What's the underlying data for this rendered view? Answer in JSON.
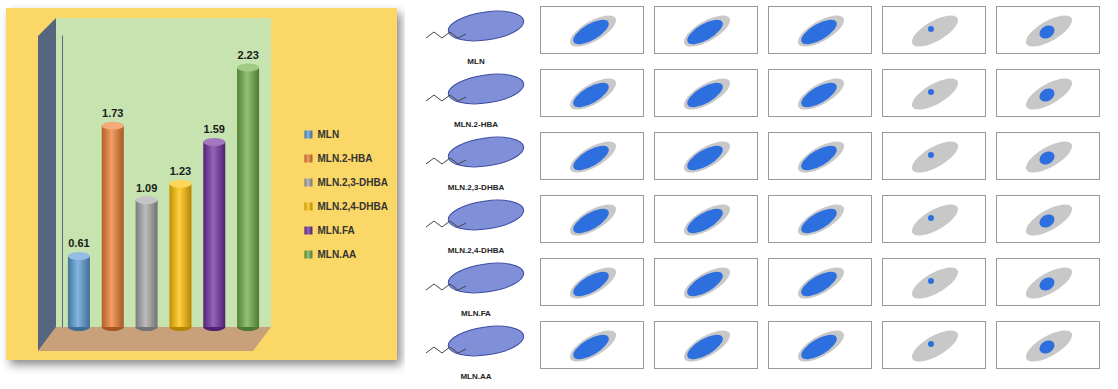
{
  "chart_data": {
    "type": "bar",
    "categories": [
      "MLN",
      "MLN.2-HBA",
      "MLN.2,3-DHBA",
      "MLN.2,4-DHBA",
      "MLN.FA",
      "MLN.AA"
    ],
    "values": [
      0.61,
      1.73,
      1.09,
      1.23,
      1.59,
      2.23
    ],
    "colors": [
      "#5b9bd5",
      "#ed7d31",
      "#a5a5a5",
      "#ffc000",
      "#7030a0",
      "#70ad47"
    ],
    "ylim": [
      0,
      2.5
    ],
    "data_labels": true,
    "tick_labels": false,
    "grid": false,
    "legend": "right"
  },
  "panel": {
    "rows": [
      "MLN",
      "MLN.2-HBA",
      "MLN.2,3-DHBA",
      "MLN.2,4-DHBA",
      "MLN.FA",
      "MLN.AA"
    ]
  }
}
